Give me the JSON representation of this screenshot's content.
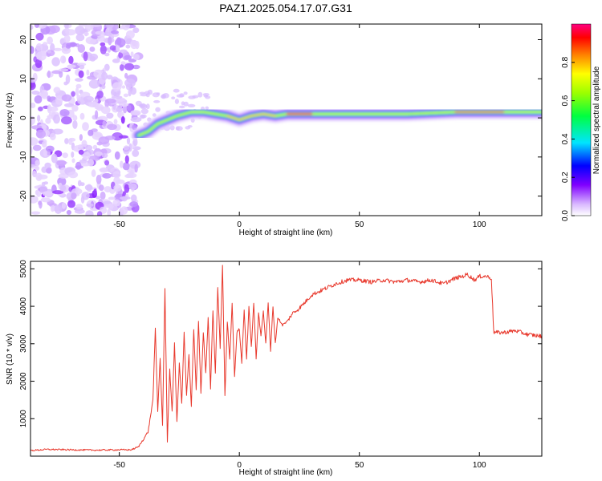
{
  "chart_data": [
    {
      "type": "heatmap",
      "title": "PAZ1.2025.054.17.07.G31",
      "xlabel": "Height of straight line (km)",
      "ylabel": "Frequency (Hz)",
      "xlim": [
        -87,
        126
      ],
      "ylim": [
        -25,
        24
      ],
      "xticks": [
        -50,
        0,
        50,
        100
      ],
      "yticks": [
        -20,
        -10,
        0,
        10,
        20
      ],
      "colorbar": {
        "label": "Normalized spectral amplitude",
        "range": [
          0,
          1
        ],
        "ticks": [
          0.0,
          0.2,
          0.4,
          0.6,
          0.8
        ],
        "tick_labels": [
          "0.0",
          "0.2",
          "0.4",
          "0.6",
          "0.8"
        ]
      },
      "features": {
        "noise_region_x": [
          -87,
          -42
        ],
        "center_line": [
          [
            -42,
            -4.5
          ],
          [
            -38,
            -3.5
          ],
          [
            -34,
            -1.5
          ],
          [
            -30,
            -0.5
          ],
          [
            -26,
            0.5
          ],
          [
            -20,
            1.5
          ],
          [
            -15,
            1.5
          ],
          [
            -10,
            1.0
          ],
          [
            -5,
            0.5
          ],
          [
            0,
            -0.5
          ],
          [
            5,
            0.5
          ],
          [
            10,
            1.0
          ],
          [
            15,
            0.5
          ],
          [
            20,
            1.0
          ],
          [
            30,
            1.0
          ],
          [
            50,
            1.0
          ],
          [
            70,
            1.0
          ],
          [
            90,
            1.5
          ],
          [
            110,
            1.5
          ],
          [
            126,
            1.5
          ]
        ]
      },
      "grid": false
    },
    {
      "type": "line",
      "xlabel": "Height of straight line (km)",
      "ylabel": "SNR (10 * v/v)",
      "xlim": [
        -87,
        126
      ],
      "ylim": [
        0,
        5200
      ],
      "xticks": [
        -50,
        0,
        50,
        100
      ],
      "yticks": [
        1000,
        2000,
        3000,
        4000,
        5000
      ],
      "series": [
        {
          "color": "#e8382c",
          "x": [
            -87,
            -80,
            -70,
            -60,
            -50,
            -45,
            -42,
            -40,
            -38,
            -36,
            -35,
            -34,
            -33,
            -32,
            -31,
            -30,
            -29,
            -28,
            -27,
            -26,
            -25,
            -24,
            -23,
            -22,
            -21,
            -20,
            -19,
            -18,
            -17,
            -16,
            -15,
            -14,
            -13,
            -12,
            -11,
            -10,
            -9,
            -8,
            -7,
            -6,
            -5,
            -4,
            -3,
            -2,
            -1,
            0,
            1,
            2,
            3,
            4,
            5,
            6,
            7,
            8,
            9,
            10,
            11,
            12,
            13,
            14,
            15,
            16,
            18,
            20,
            22,
            25,
            28,
            30,
            35,
            40,
            45,
            50,
            55,
            60,
            65,
            70,
            75,
            80,
            85,
            90,
            93,
            95,
            98,
            100,
            103,
            105,
            106,
            110,
            115,
            120,
            126
          ],
          "y": [
            150,
            180,
            170,
            160,
            170,
            170,
            250,
            450,
            650,
            1500,
            3400,
            1200,
            2600,
            800,
            4500,
            400,
            2300,
            1200,
            3000,
            900,
            2500,
            1400,
            3300,
            1600,
            2700,
            1300,
            3400,
            1800,
            3600,
            1700,
            3300,
            2200,
            3700,
            1800,
            3900,
            2200,
            4500,
            2900,
            5100,
            1600,
            3600,
            2600,
            4100,
            2100,
            3300,
            3400,
            2500,
            3900,
            2600,
            4000,
            2900,
            4100,
            2600,
            3800,
            3200,
            3900,
            3000,
            4100,
            2800,
            4000,
            3000,
            3700,
            3500,
            3600,
            3800,
            3950,
            4150,
            4300,
            4450,
            4600,
            4700,
            4700,
            4650,
            4700,
            4650,
            4700,
            4650,
            4700,
            4600,
            4750,
            4800,
            4850,
            4700,
            4800,
            4800,
            4750,
            3300,
            3300,
            3350,
            3250,
            3200
          ]
        }
      ],
      "grid": false
    }
  ]
}
